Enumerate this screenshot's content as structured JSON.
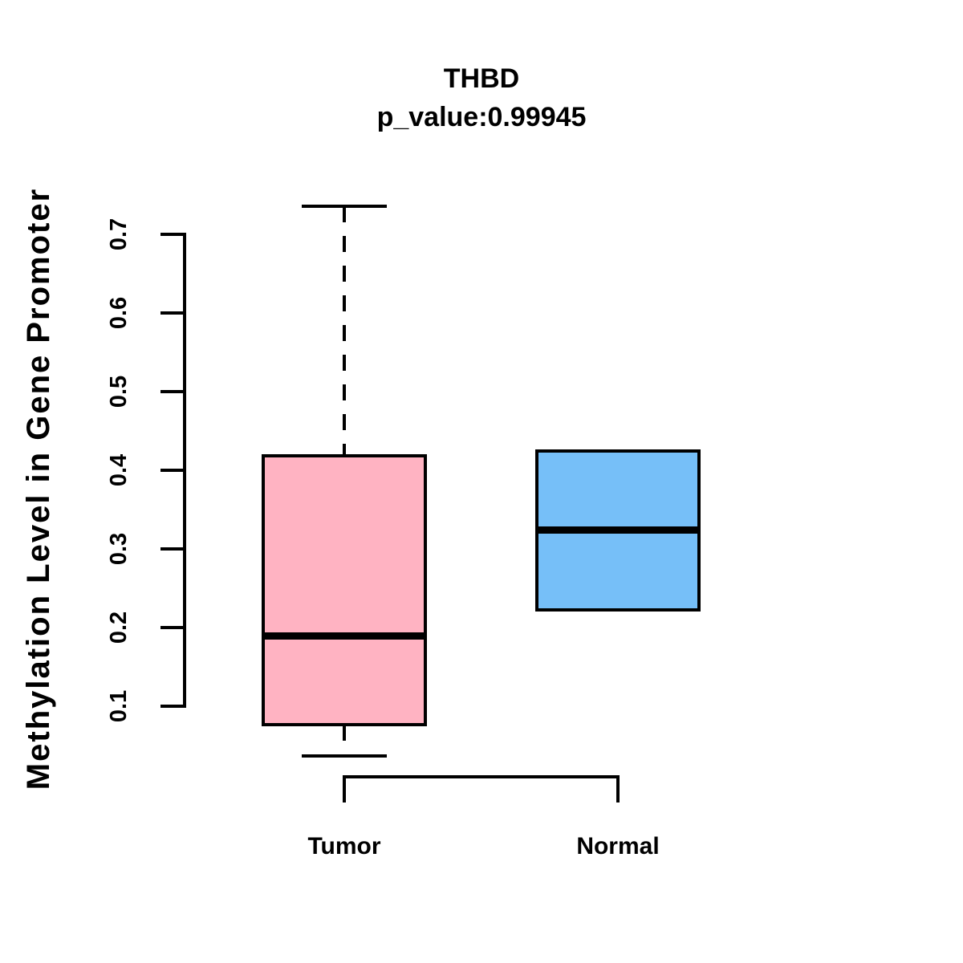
{
  "title": {
    "gene": "THBD",
    "p_value_text": "p_value:0.99945"
  },
  "chart_data": {
    "type": "boxplot",
    "title": "THBD",
    "subtitle": "p_value:0.99945",
    "ylabel": "Methylation Level in Gene Promoter",
    "xlabel": "",
    "categories": [
      "Tumor",
      "Normal"
    ],
    "yticks": [
      0.1,
      0.2,
      0.3,
      0.4,
      0.5,
      0.6,
      0.7
    ],
    "ylim": [
      0.03,
      0.74
    ],
    "grid": false,
    "legend": "none",
    "p_value": 0.99945,
    "series": [
      {
        "name": "Tumor",
        "fill": "#FFB3C2",
        "whisker_low": 0.037,
        "q1": 0.077,
        "median": 0.19,
        "q3": 0.418,
        "whisker_high": 0.736
      },
      {
        "name": "Normal",
        "fill": "#76BFF8",
        "whisker_low": 0.222,
        "q1": 0.222,
        "median": 0.324,
        "q3": 0.424,
        "whisker_high": 0.424
      }
    ],
    "colors": {
      "box_border": "#000000",
      "axis": "#000000",
      "text": "#000000",
      "background": "#FFFFFF"
    }
  }
}
